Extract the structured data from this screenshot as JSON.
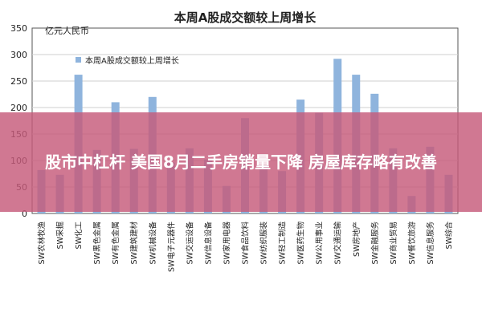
{
  "chart_data": {
    "type": "bar",
    "title": "本周A股成交额较上周增长",
    "ylabel": "亿元人民币",
    "legend_label": "本周A股成交额较上周增长",
    "legend_position": "top-left",
    "ylim": [
      0,
      350
    ],
    "yticks": [
      0,
      50,
      100,
      150,
      200,
      250,
      300,
      350
    ],
    "grid": true,
    "bar_color": "#8fb4dd",
    "categories": [
      "SW农林牧渔",
      "SW采掘",
      "SW化工",
      "SW黑色金属",
      "SW有色金属",
      "SW建筑建材",
      "SW机械设备",
      "SW电子元器件",
      "SW交运设备",
      "SW信息设备",
      "SW家用电器",
      "SW食品饮料",
      "SW纺织服装",
      "SW轻工制造",
      "SW医药生物",
      "SW公用事业",
      "SW交通运输",
      "SW房地产",
      "SW金融服务",
      "SW商业贸易",
      "SW餐饮旅游",
      "SW信息服务",
      "SW综合"
    ],
    "values": [
      82,
      73,
      262,
      120,
      210,
      122,
      220,
      96,
      123,
      102,
      52,
      180,
      92,
      80,
      215,
      190,
      292,
      262,
      226,
      123,
      33,
      126,
      73
    ]
  },
  "banner": {
    "text": "股市中杠杆 美国8月二手房销量下降 房屋库存略有改善"
  }
}
